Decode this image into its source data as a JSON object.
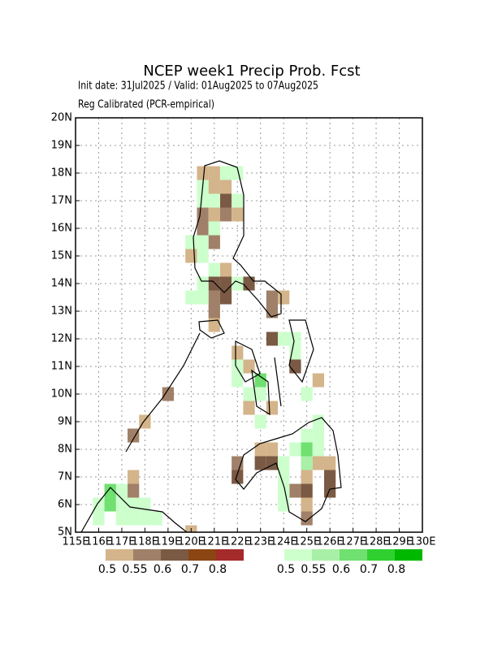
{
  "chart_data": {
    "type": "grid-map",
    "title": "NCEP week1 Precip Prob. Fcst",
    "subtitle": "Init date: 31Jul2025 / Valid: 01Aug2025 to 07Aug2025",
    "note": "Reg Calibrated (PCR-empirical)",
    "xlim": [
      115,
      130
    ],
    "ylim": [
      5,
      20
    ],
    "grid": true,
    "xticks": [
      {
        "value": 115,
        "label": "115E"
      },
      {
        "value": 116,
        "label": "116E"
      },
      {
        "value": 117,
        "label": "117E"
      },
      {
        "value": 118,
        "label": "118E"
      },
      {
        "value": 119,
        "label": "119E"
      },
      {
        "value": 120,
        "label": "120E"
      },
      {
        "value": 121,
        "label": "121E"
      },
      {
        "value": 122,
        "label": "122E"
      },
      {
        "value": 123,
        "label": "123E"
      },
      {
        "value": 124,
        "label": "124E"
      },
      {
        "value": 125,
        "label": "125E"
      },
      {
        "value": 126,
        "label": "126E"
      },
      {
        "value": 127,
        "label": "127E"
      },
      {
        "value": 128,
        "label": "128E"
      },
      {
        "value": 129,
        "label": "129E"
      },
      {
        "value": 130,
        "label": "130E"
      }
    ],
    "yticks": [
      {
        "value": 5,
        "label": "5N"
      },
      {
        "value": 6,
        "label": "6N"
      },
      {
        "value": 7,
        "label": "7N"
      },
      {
        "value": 8,
        "label": "8N"
      },
      {
        "value": 9,
        "label": "9N"
      },
      {
        "value": 10,
        "label": "10N"
      },
      {
        "value": 11,
        "label": "11N"
      },
      {
        "value": 12,
        "label": "12N"
      },
      {
        "value": 13,
        "label": "13N"
      },
      {
        "value": 14,
        "label": "14N"
      },
      {
        "value": 15,
        "label": "15N"
      },
      {
        "value": 16,
        "label": "16N"
      },
      {
        "value": 17,
        "label": "17N"
      },
      {
        "value": 18,
        "label": "18N"
      },
      {
        "value": 19,
        "label": "19N"
      },
      {
        "value": 20,
        "label": "20N"
      }
    ],
    "series": [
      {
        "colors": [
          "#d4b48a",
          "#a08068",
          "#7a5a44",
          "#8b4513",
          "#a52a2a"
        ],
        "levels": [
          0.5,
          0.55,
          0.6,
          0.7,
          0.8
        ],
        "lon": [
          120.5,
          121,
          121,
          121.5,
          121.5,
          120.5,
          121,
          121.5,
          122,
          120.5,
          121,
          120,
          121.5,
          121,
          121.5,
          122.5,
          121,
          121.5,
          123.5,
          124,
          121,
          123.5,
          121,
          123.5,
          122,
          122.5,
          124.5,
          125.5,
          122.5,
          123.5,
          123,
          123.5,
          122,
          123,
          123.5,
          125.5,
          126,
          122,
          125,
          126,
          124.5,
          125,
          126,
          125,
          125,
          117.5,
          117.5,
          119,
          118,
          117.5,
          120
        ],
        "lat": [
          18,
          18,
          17.5,
          17.5,
          17,
          16.5,
          16.5,
          16.5,
          16.5,
          16,
          15.5,
          15,
          14.5,
          14,
          14,
          14,
          13.5,
          13.5,
          13.5,
          13.5,
          13,
          13,
          12.5,
          12,
          11.5,
          11,
          11,
          10.5,
          9.5,
          9.5,
          8,
          8,
          7.5,
          7.5,
          7.5,
          7.5,
          7.5,
          7,
          7,
          7,
          6.5,
          6.5,
          6.5,
          6,
          5.5,
          7,
          6.5,
          10,
          9,
          8.5,
          5
        ],
        "values": [
          0.5,
          0.5,
          0.5,
          0.5,
          0.6,
          0.55,
          0.5,
          0.55,
          0.5,
          0.55,
          0.55,
          0.5,
          0.5,
          0.6,
          0.6,
          0.6,
          0.55,
          0.6,
          0.55,
          0.5,
          0.55,
          0.55,
          0.5,
          0.6,
          0.5,
          0.5,
          0.6,
          0.5,
          0.5,
          0.5,
          0.5,
          0.5,
          0.55,
          0.6,
          0.6,
          0.5,
          0.5,
          0.6,
          0.5,
          0.6,
          0.55,
          0.6,
          0.6,
          0.5,
          0.55,
          0.5,
          0.55,
          0.55,
          0.5,
          0.55,
          0.5
        ]
      },
      {
        "colors": [
          "#ccffcc",
          "#a8f0a8",
          "#70e070",
          "#30d030",
          "#00b800"
        ],
        "levels": [
          0.5,
          0.55,
          0.6,
          0.7,
          0.8
        ],
        "lon": [
          121.5,
          122,
          120.5,
          120.5,
          121,
          122,
          121,
          120,
          120.5,
          120.5,
          121,
          120.5,
          122,
          120,
          120.5,
          124,
          124.5,
          124.5,
          122,
          122,
          123,
          122.5,
          123,
          125,
          123,
          125.5,
          125,
          125.5,
          124.5,
          125,
          125.5,
          124,
          125,
          124,
          124,
          124,
          117,
          116.5,
          116,
          116.5,
          117,
          117.5,
          118,
          116,
          117,
          117.5,
          118,
          118.5
        ],
        "lat": [
          18,
          18,
          17.5,
          17,
          17,
          17,
          16,
          15.5,
          15.5,
          15,
          14.5,
          14,
          14,
          13.5,
          13.5,
          12,
          12,
          11.5,
          11,
          10.5,
          10.5,
          10,
          10,
          10,
          9,
          9,
          8.5,
          8.5,
          8,
          8,
          8,
          7.5,
          7.5,
          7,
          6.5,
          6,
          6.5,
          6.5,
          6,
          6,
          6,
          6,
          6,
          5.5,
          5.5,
          5.5,
          5.5,
          5.5
        ],
        "values": [
          0.5,
          0.5,
          0.5,
          0.5,
          0.5,
          0.5,
          0.5,
          0.5,
          0.5,
          0.5,
          0.5,
          0.5,
          0.5,
          0.5,
          0.5,
          0.5,
          0.5,
          0.5,
          0.5,
          0.5,
          0.6,
          0.5,
          0.5,
          0.5,
          0.5,
          0.5,
          0.5,
          0.5,
          0.5,
          0.6,
          0.5,
          0.5,
          0.55,
          0.5,
          0.5,
          0.5,
          0.5,
          0.6,
          0.5,
          0.6,
          0.5,
          0.5,
          0.5,
          0.5,
          0.5,
          0.5,
          0.5,
          0.5
        ]
      }
    ]
  }
}
